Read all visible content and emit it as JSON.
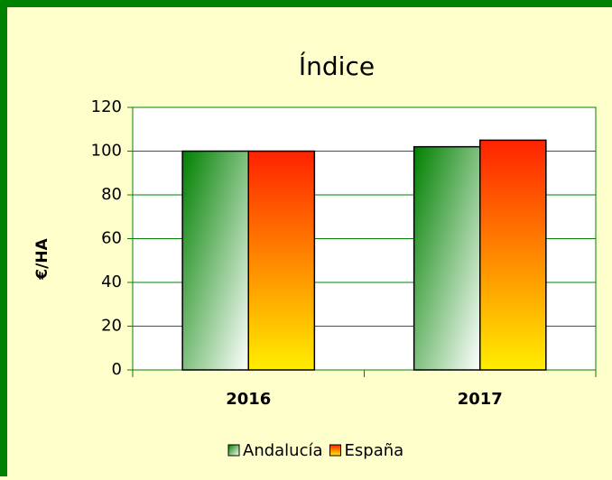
{
  "chart_data": {
    "type": "bar",
    "title": "Índice",
    "y_label": "€/HA",
    "categories": [
      "2016",
      "2017"
    ],
    "series": [
      {
        "name": "Andalucía",
        "color": "#008000",
        "values": [
          100,
          102
        ]
      },
      {
        "name": "España",
        "color": "#ff2200",
        "values": [
          100,
          105
        ]
      }
    ],
    "ylim": [
      0,
      120
    ],
    "yticks": [
      0,
      20,
      40,
      60,
      80,
      100,
      120
    ],
    "grid": true,
    "legend": "bottom"
  }
}
